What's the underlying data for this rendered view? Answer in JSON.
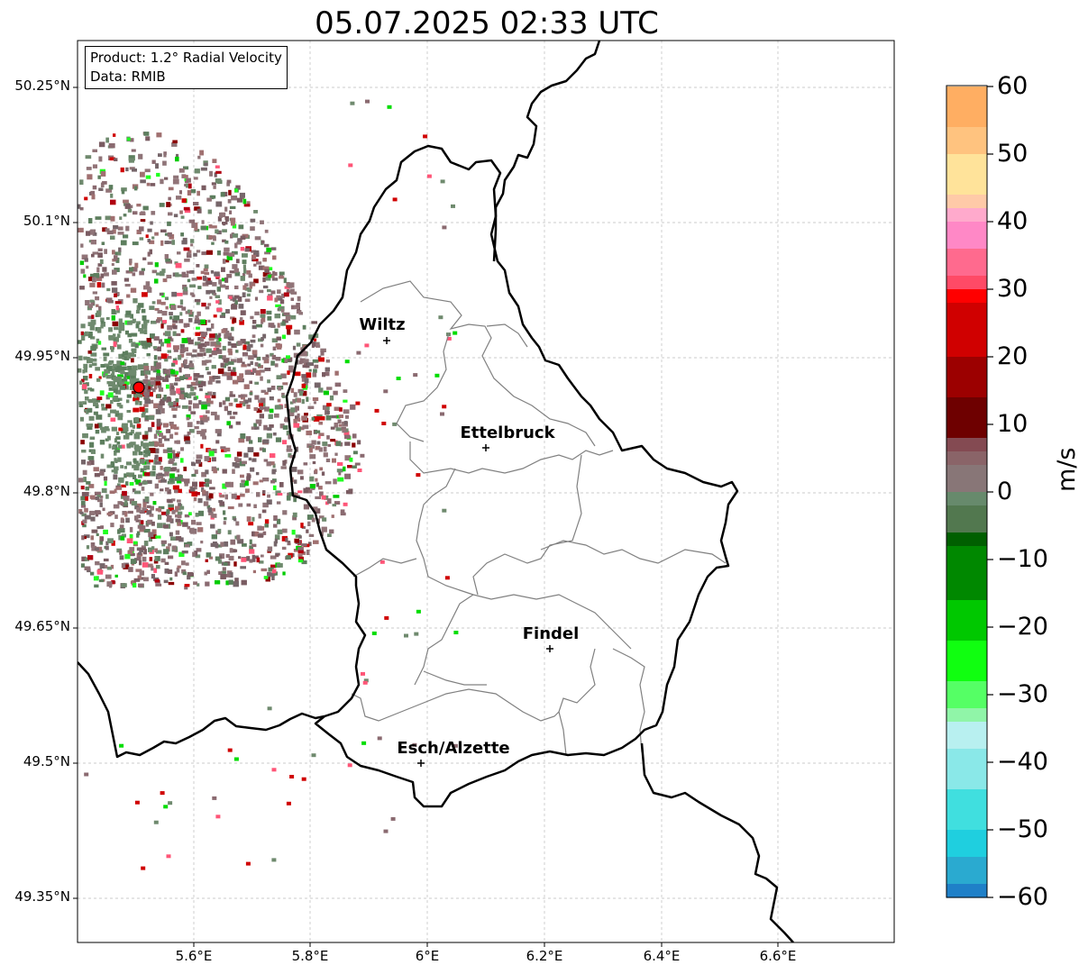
{
  "title": "05.07.2025 02:33 UTC",
  "info": {
    "product": "Product: 1.2° Radial Velocity",
    "data": "Data: RMIB"
  },
  "lat_ticks": [
    "50.25°N",
    "50.1°N",
    "49.95°N",
    "49.8°N",
    "49.65°N",
    "49.5°N",
    "49.35°N"
  ],
  "lon_ticks": [
    "5.6°E",
    "5.8°E",
    "6°E",
    "6.2°E",
    "6.4°E",
    "6.6°E"
  ],
  "cities": [
    {
      "name": "Wiltz"
    },
    {
      "name": "Ettelbruck"
    },
    {
      "name": "Findel"
    },
    {
      "name": "Esch/Alzette"
    }
  ],
  "colorbar": {
    "label": "m/s",
    "ticks": [
      "60",
      "50",
      "40",
      "30",
      "20",
      "10",
      "0",
      "−10",
      "−20",
      "−30",
      "−40",
      "−50",
      "−60"
    ],
    "range": [
      -60,
      60
    ]
  },
  "colors": {
    "border": "#000000",
    "canton": "#808080",
    "radar_site": "#ff0000"
  }
}
